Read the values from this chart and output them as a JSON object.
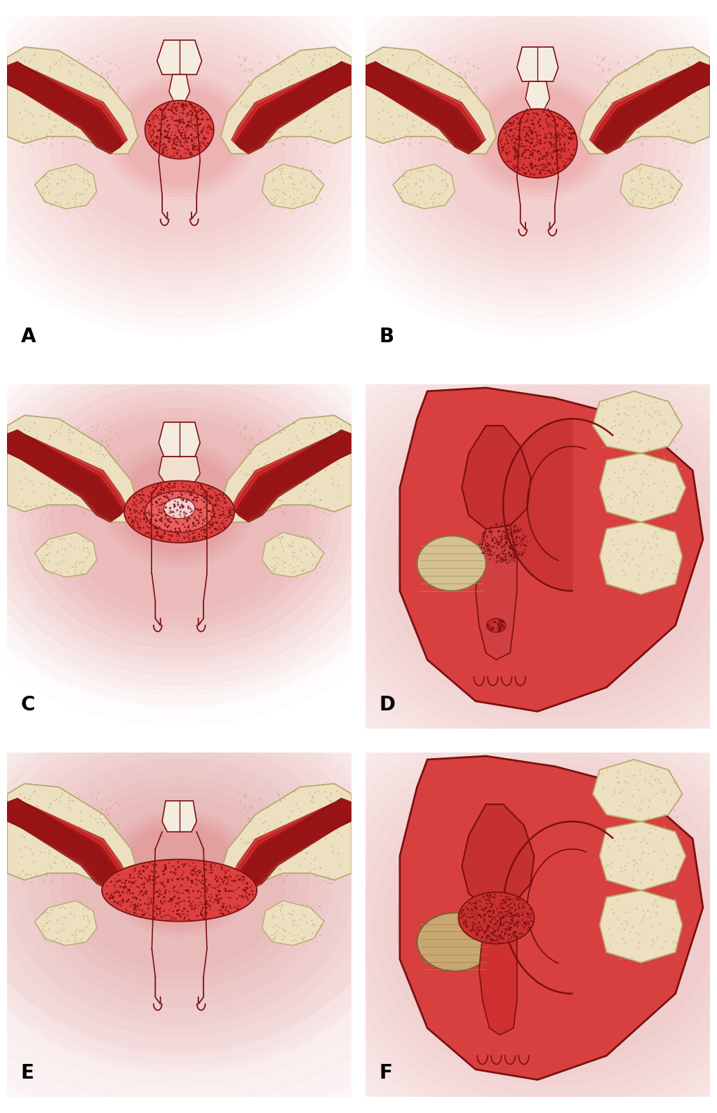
{
  "labels": [
    "A",
    "B",
    "C",
    "D",
    "E",
    "F"
  ],
  "label_fontsize": 20,
  "label_color": "#000000",
  "bg_color": "#ffffff",
  "figure_size": [
    10.22,
    15.87
  ],
  "dpi": 100,
  "dark_red": "#7B1010",
  "bone_color": "#ede0c0",
  "bone_edge": "#b8a870",
  "muscle_red": "#cc2222",
  "muscle_dark": "#991515",
  "glow_color": "#e05050",
  "tumor_color": "#c03030",
  "tissue_pale": "#f0e8d8"
}
